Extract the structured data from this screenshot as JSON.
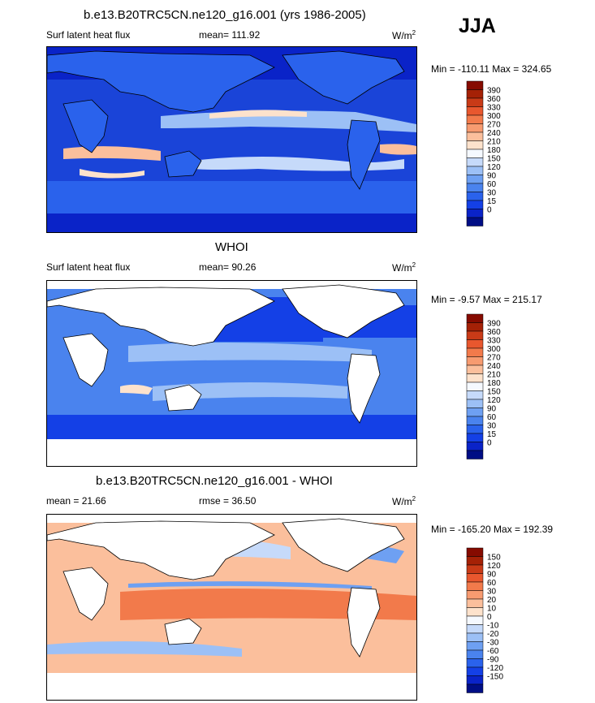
{
  "season": "JJA",
  "panels": [
    {
      "title": "b.e13.B20TRC5CN.ne120_g16.001 (yrs 1986-2005)",
      "left_label": "Surf latent heat flux",
      "mid_label": "mean= 111.92",
      "units": "W/m",
      "units_sup": "2",
      "minmax": "Min = -110.11 Max = 324.65",
      "colorbar": {
        "colors": [
          "#000e85",
          "#0a23c8",
          "#1440e6",
          "#2a62ec",
          "#4a83ee",
          "#6ea0f2",
          "#9cc0f6",
          "#c6dafa",
          "#f5f9ff",
          "#fde2cc",
          "#fbbf9c",
          "#f79b70",
          "#f27a4b",
          "#e8572e",
          "#c93a17",
          "#a52106",
          "#860b00"
        ],
        "labels": [
          "390",
          "360",
          "330",
          "300",
          "270",
          "240",
          "210",
          "180",
          "150",
          "120",
          "90",
          "60",
          "30",
          "15",
          "0"
        ]
      }
    },
    {
      "title": "WHOI",
      "left_label": "Surf latent heat flux",
      "mid_label": "mean=  90.26",
      "units": "W/m",
      "units_sup": "2",
      "minmax": "Min =  -9.57 Max = 215.17",
      "colorbar": {
        "colors": [
          "#000e85",
          "#0a23c8",
          "#1440e6",
          "#2a62ec",
          "#4a83ee",
          "#6ea0f2",
          "#9cc0f6",
          "#c6dafa",
          "#f5f9ff",
          "#fde2cc",
          "#fbbf9c",
          "#f79b70",
          "#f27a4b",
          "#e8572e",
          "#c93a17",
          "#a52106",
          "#860b00"
        ],
        "labels": [
          "390",
          "360",
          "330",
          "300",
          "270",
          "240",
          "210",
          "180",
          "150",
          "120",
          "90",
          "60",
          "30",
          "15",
          "0"
        ]
      }
    },
    {
      "title": "b.e13.B20TRC5CN.ne120_g16.001 - WHOI",
      "left_label": "mean =  21.66",
      "mid_label": "rmse =  36.50",
      "units": "W/m",
      "units_sup": "2",
      "minmax": "Min = -165.20 Max = 192.39",
      "colorbar": {
        "colors": [
          "#000e85",
          "#0a23c8",
          "#1440e6",
          "#2a62ec",
          "#4a83ee",
          "#6ea0f2",
          "#9cc0f6",
          "#c6dafa",
          "#f5f9ff",
          "#fde2cc",
          "#fbbf9c",
          "#f79b70",
          "#f27a4b",
          "#e8572e",
          "#c93a17",
          "#a52106",
          "#860b00"
        ],
        "labels": [
          "150",
          "120",
          "90",
          "60",
          "30",
          "20",
          "10",
          "0",
          "-10",
          "-20",
          "-30",
          "-60",
          "-90",
          "-120",
          "-150"
        ]
      }
    }
  ]
}
